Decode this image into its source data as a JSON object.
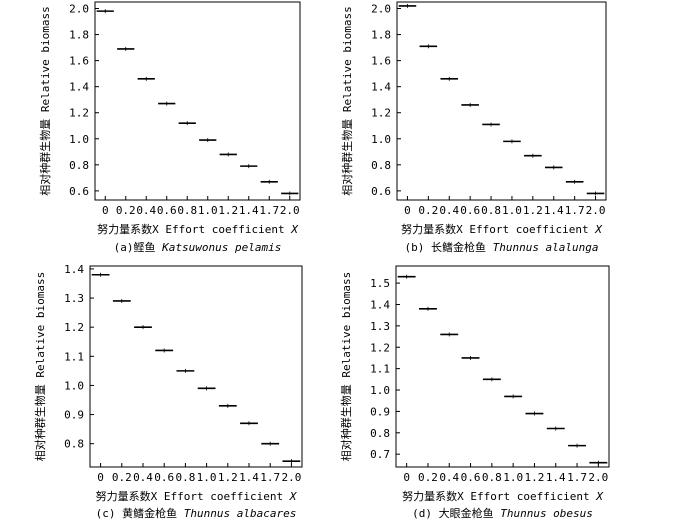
{
  "chart_data": [
    {
      "type": "box",
      "caption": {
        "prefix": "(a)鲣鱼 ",
        "species": "Katsuwonus pelamis"
      },
      "xlabel": {
        "text": "努力量系数X Effort coefficient ",
        "var": "X"
      },
      "ylabel": "相对种群生物量 Relative biomass",
      "categories": [
        "0",
        "0.2",
        "0.4",
        "0.6",
        "0.8",
        "1.0",
        "1.2",
        "1.4",
        "1.7",
        "2.0"
      ],
      "values": [
        1.98,
        1.69,
        1.46,
        1.27,
        1.12,
        0.99,
        0.88,
        0.79,
        0.67,
        0.58
      ],
      "ylim": [
        0.53,
        2.05
      ],
      "yticks": [
        "0.6",
        "0.8",
        "1.0",
        "1.2",
        "1.4",
        "1.6",
        "1.8",
        "2.0"
      ]
    },
    {
      "type": "box",
      "caption": {
        "prefix": "(b) 长鳍金枪鱼 ",
        "species": "Thunnus alalunga"
      },
      "xlabel": {
        "text": "努力量系数X Effort coefficient ",
        "var": "X"
      },
      "ylabel": "相对种群生物量 Relative biomass",
      "categories": [
        "0",
        "0.2",
        "0.4",
        "0.6",
        "0.8",
        "1.0",
        "1.2",
        "1.4",
        "1.7",
        "2.0"
      ],
      "values": [
        2.02,
        1.71,
        1.46,
        1.26,
        1.11,
        0.98,
        0.87,
        0.78,
        0.67,
        0.58
      ],
      "ylim": [
        0.53,
        2.05
      ],
      "yticks": [
        "0.6",
        "0.8",
        "1.0",
        "1.2",
        "1.4",
        "1.6",
        "1.8",
        "2.0"
      ]
    },
    {
      "type": "box",
      "caption": {
        "prefix": "(c) 黄鳍金枪鱼 ",
        "species": "Thunnus albacares"
      },
      "xlabel": {
        "text": "努力量系数X Effort coefficient ",
        "var": "X"
      },
      "ylabel": "相对种群生物量 Relative biomass",
      "categories": [
        "0",
        "0.2",
        "0.4",
        "0.6",
        "0.8",
        "1.0",
        "1.2",
        "1.4",
        "1.7",
        "2.0"
      ],
      "values": [
        1.38,
        1.29,
        1.2,
        1.12,
        1.05,
        0.99,
        0.93,
        0.87,
        0.8,
        0.74
      ],
      "ylim": [
        0.72,
        1.41
      ],
      "yticks": [
        "0.8",
        "0.9",
        "1.0",
        "1.1",
        "1.2",
        "1.3",
        "1.4"
      ]
    },
    {
      "type": "box",
      "caption": {
        "prefix": "(d) 大眼金枪鱼 ",
        "species": "Thunnus obesus"
      },
      "xlabel": {
        "text": "努力量系数X Effort coefficient ",
        "var": "X"
      },
      "ylabel": "相对种群生物量 Relative biomass",
      "categories": [
        "0",
        "0.2",
        "0.4",
        "0.6",
        "0.8",
        "1.0",
        "1.2",
        "1.4",
        "1.7",
        "2.0"
      ],
      "values": [
        1.53,
        1.38,
        1.26,
        1.15,
        1.05,
        0.97,
        0.89,
        0.82,
        0.74,
        0.66
      ],
      "ylim": [
        0.64,
        1.58
      ],
      "yticks": [
        "0.7",
        "0.8",
        "0.9",
        "1.0",
        "1.1",
        "1.2",
        "1.3",
        "1.4",
        "1.5"
      ]
    }
  ]
}
